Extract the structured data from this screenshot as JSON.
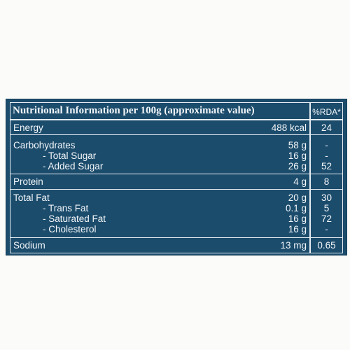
{
  "header": {
    "title": "Nutritional Information  per 100g (approximate value)",
    "rda": "%RDA*"
  },
  "rows": [
    {
      "label": "Energy",
      "value": "488 kcal",
      "rda": "24"
    },
    {
      "label": "Carbohydrates",
      "value": "58 g",
      "rda": "-"
    },
    {
      "label": "- Total Sugar",
      "value": "16 g",
      "rda": "-"
    },
    {
      "label": "- Added Sugar",
      "value": "26 g",
      "rda": "52"
    },
    {
      "label": "Protein",
      "value": "4 g",
      "rda": "8"
    },
    {
      "label": "Total Fat",
      "value": "20 g",
      "rda": "30"
    },
    {
      "label": "- Trans Fat",
      "value": "0.1 g",
      "rda": "5"
    },
    {
      "label": "- Saturated Fat",
      "value": "16 g",
      "rda": "72"
    },
    {
      "label": "- Cholesterol",
      "value": "16 g",
      "rda": "-"
    },
    {
      "label": "Sodium",
      "value": "13 mg",
      "rda": "0.65"
    }
  ]
}
